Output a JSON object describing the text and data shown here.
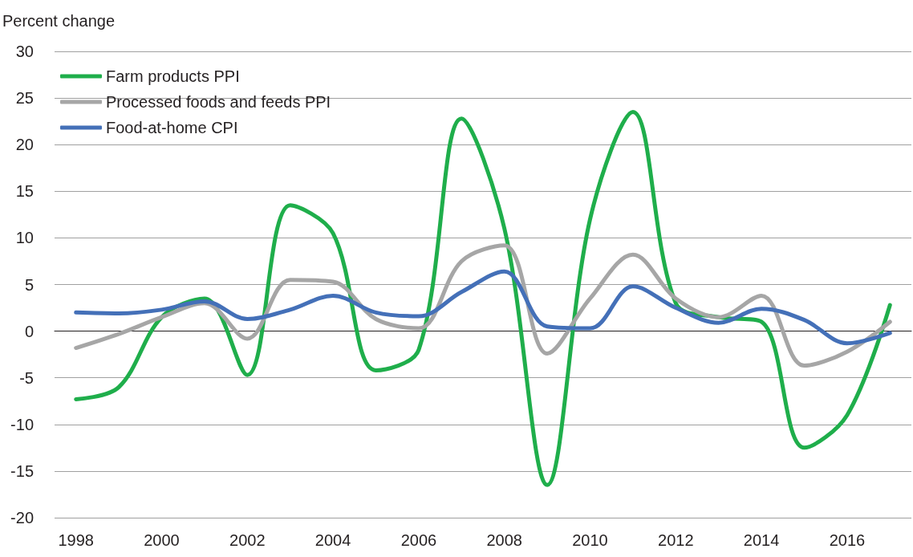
{
  "chart_data": {
    "type": "line",
    "ylabel": "Percent change",
    "categories": [
      "1998",
      null,
      "2000",
      null,
      "2002",
      null,
      "2004",
      null,
      "2006",
      null,
      "2008",
      null,
      "2010",
      null,
      "2012",
      null,
      "2014",
      null,
      "2016",
      null
    ],
    "series": [
      {
        "name": "Farm products PPI",
        "color": "#1fae4b",
        "values": [
          -7.3,
          -6,
          1.5,
          3.5,
          -4.7,
          13.5,
          10.5,
          -4.2,
          -2,
          22.8,
          11,
          -16.5,
          12,
          23.5,
          3,
          1.5,
          1,
          -12.5,
          -9,
          2.8
        ]
      },
      {
        "name": "Processed foods and feeds PPI",
        "color": "#a6a6a6",
        "values": [
          -1.8,
          -0.3,
          1.5,
          3,
          -0.8,
          5.5,
          5.3,
          1.3,
          0.3,
          7.5,
          9.2,
          -2.4,
          3.5,
          8.2,
          3.5,
          1.5,
          3.8,
          -3.7,
          -2.2,
          1
        ]
      },
      {
        "name": "Food-at-home CPI",
        "color": "#4470b8",
        "values": [
          2,
          1.9,
          2.3,
          3.2,
          1.3,
          2.3,
          3.8,
          2,
          1.6,
          4.2,
          6.4,
          0.5,
          0.3,
          4.8,
          2.5,
          0.9,
          2.4,
          1.2,
          -1.3,
          -0.2
        ]
      }
    ],
    "ylim": [
      -20,
      30
    ],
    "yticks": [
      -20,
      -15,
      -10,
      -5,
      0,
      5,
      10,
      15,
      20,
      25,
      30
    ],
    "grid": "y",
    "legend": "top left"
  }
}
